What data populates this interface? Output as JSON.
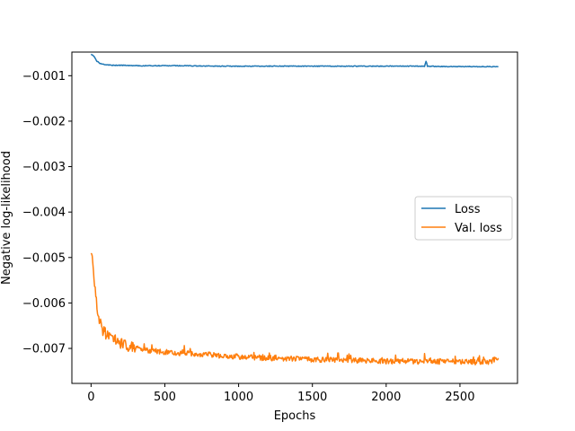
{
  "chart_data": {
    "type": "line",
    "title": "",
    "xlabel": "Epochs",
    "ylabel": "Negative log-likelihood",
    "xlim": [
      -130,
      2890
    ],
    "ylim": [
      -0.00777,
      -0.00048
    ],
    "xticks": [
      0,
      500,
      1000,
      1500,
      2000,
      2500
    ],
    "xtick_labels": [
      "0",
      "500",
      "1000",
      "1500",
      "2000",
      "2500"
    ],
    "yticks": [
      -0.001,
      -0.002,
      -0.003,
      -0.004,
      -0.005,
      -0.006,
      -0.007
    ],
    "ytick_labels": [
      "−0.001",
      "−0.002",
      "−0.003",
      "−0.004",
      "−0.005",
      "−0.006",
      "−0.007"
    ],
    "grid": false,
    "legend_position": "center-right",
    "series": [
      {
        "name": "Loss",
        "color": "#1f77b4",
        "x": [
          0,
          20,
          40,
          60,
          80,
          100,
          150,
          200,
          300,
          400,
          500,
          600,
          800,
          1000,
          1200,
          1400,
          1600,
          1800,
          2000,
          2200,
          2260,
          2270,
          2280,
          2400,
          2600,
          2760
        ],
        "y": [
          -0.00052,
          -0.00058,
          -0.00068,
          -0.00073,
          -0.00075,
          -0.00076,
          -0.00077,
          -0.00077,
          -0.00078,
          -0.00078,
          -0.00078,
          -0.00078,
          -0.00079,
          -0.00079,
          -0.00079,
          -0.00079,
          -0.00079,
          -0.00079,
          -0.00079,
          -0.00079,
          -0.00079,
          -0.00068,
          -0.00079,
          -0.0008,
          -0.0008,
          -0.0008
        ]
      },
      {
        "name": "Val. loss",
        "color": "#ff7f0e",
        "x": [
          0,
          10,
          20,
          30,
          40,
          50,
          60,
          70,
          80,
          100,
          120,
          150,
          200,
          250,
          300,
          400,
          500,
          600,
          700,
          800,
          900,
          1000,
          1100,
          1200,
          1300,
          1400,
          1500,
          1600,
          1700,
          1800,
          1900,
          2000,
          2100,
          2200,
          2300,
          2400,
          2500,
          2600,
          2700,
          2760
        ],
        "y": [
          -0.00485,
          -0.0051,
          -0.0054,
          -0.0058,
          -0.0061,
          -0.0063,
          -0.0064,
          -0.0065,
          -0.0066,
          -0.00668,
          -0.00675,
          -0.0068,
          -0.00688,
          -0.00695,
          -0.007,
          -0.00705,
          -0.00708,
          -0.0071,
          -0.00712,
          -0.00714,
          -0.00716,
          -0.00718,
          -0.0072,
          -0.00721,
          -0.00722,
          -0.00723,
          -0.00724,
          -0.00725,
          -0.00726,
          -0.00727,
          -0.00727,
          -0.00728,
          -0.00728,
          -0.00729,
          -0.00729,
          -0.00729,
          -0.0073,
          -0.0073,
          -0.0073,
          -0.0072
        ]
      }
    ]
  }
}
